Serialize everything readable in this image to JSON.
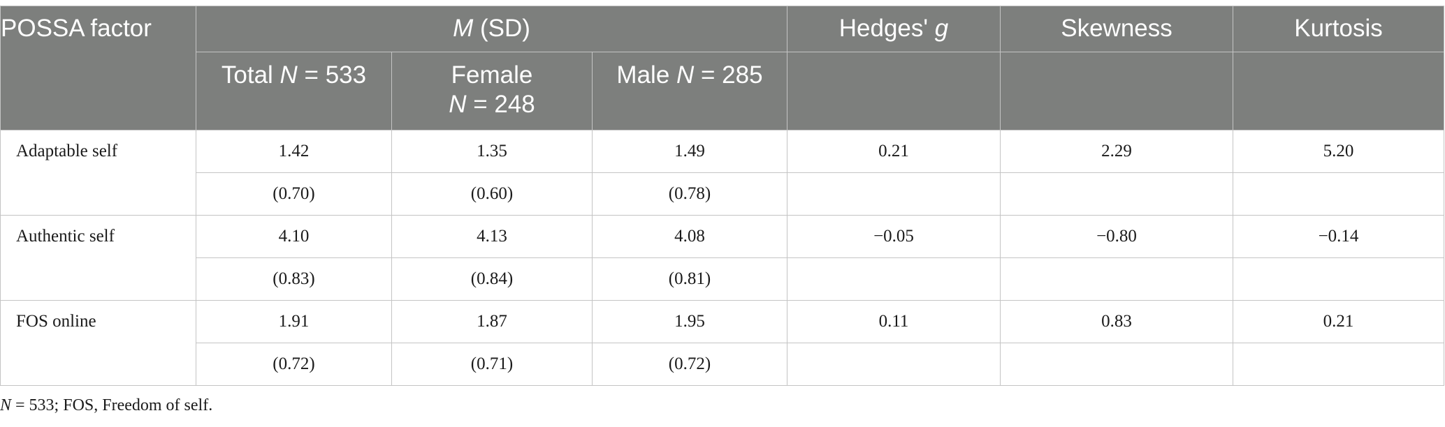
{
  "table": {
    "header": {
      "factor_label": "POSSA factor",
      "msd_italic": "M",
      "msd_rest": " (SD)",
      "hedges_label": "Hedges' ",
      "hedges_italic": "g",
      "skewness_label": "Skewness",
      "kurtosis_label": "Kurtosis",
      "total_prefix": "Total ",
      "total_n_italic": "N",
      "total_suffix": " = 533",
      "female_label": "Female",
      "female_n_italic": "N",
      "female_suffix": " = 248",
      "male_prefix": "Male ",
      "male_n_italic": "N",
      "male_suffix": " = 285"
    },
    "rows": [
      {
        "factor": "Adaptable self",
        "means": [
          "1.42",
          "1.35",
          "1.49"
        ],
        "sds": [
          "(0.70)",
          "(0.60)",
          "(0.78)"
        ],
        "hedges_g": "0.21",
        "skewness": "2.29",
        "kurtosis": "5.20"
      },
      {
        "factor": "Authentic self",
        "means": [
          "4.10",
          "4.13",
          "4.08"
        ],
        "sds": [
          "(0.83)",
          "(0.84)",
          "(0.81)"
        ],
        "hedges_g": "−0.05",
        "skewness": "−0.80",
        "kurtosis": "−0.14"
      },
      {
        "factor": "FOS online",
        "means": [
          "1.91",
          "1.87",
          "1.95"
        ],
        "sds": [
          "(0.72)",
          "(0.71)",
          "(0.72)"
        ],
        "hedges_g": "0.11",
        "skewness": "0.83",
        "kurtosis": "0.21"
      }
    ]
  },
  "note": {
    "n_italic": "N",
    "text": " = 533; FOS, Freedom of self."
  }
}
